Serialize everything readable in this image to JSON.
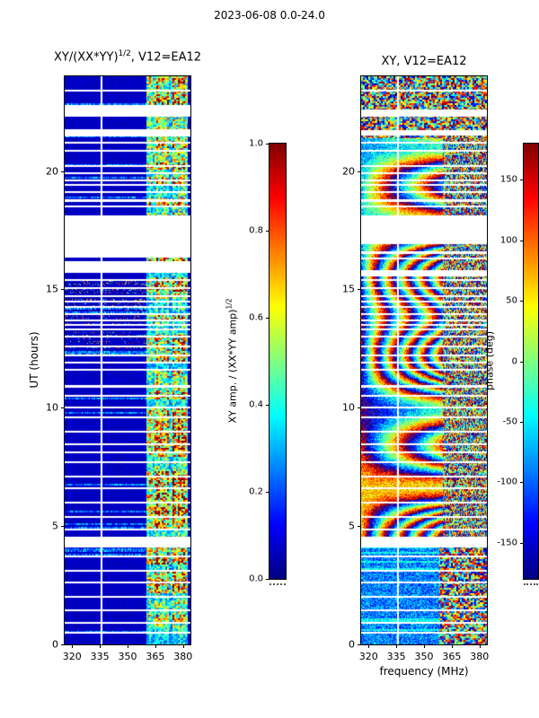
{
  "figure": {
    "title": "2023-06-08 0.0-24.0",
    "xlabel": "frequency (MHz)"
  },
  "left_plot": {
    "title_main": "XY/(XX*YY)",
    "title_sup": "1/2",
    "title_rest": ", V12=EA12",
    "ylabel": "UT (hours)",
    "x_tick_labels": [
      "320",
      "335",
      "350",
      "365",
      "380"
    ],
    "y_tick_labels": [
      "0",
      "5",
      "10",
      "15",
      "20"
    ]
  },
  "right_plot": {
    "title": "XY, V12=EA12",
    "x_tick_labels": [
      "320",
      "335",
      "350",
      "365",
      "380"
    ],
    "y_tick_labels": [
      "0",
      "5",
      "10",
      "15",
      "20"
    ]
  },
  "left_colorbar": {
    "label_main": "XY amp. / (XX*YY amp)",
    "label_sup": "1/2",
    "tick_labels": [
      "0.0",
      "0.2",
      "0.4",
      "0.6",
      "0.8",
      "1.0"
    ]
  },
  "right_colorbar": {
    "label": "phase (deg)",
    "tick_labels": [
      "-150",
      "-100",
      "-50",
      "0",
      "50",
      "100",
      "150"
    ]
  },
  "chart_data": [
    {
      "type": "heatmap",
      "title": "XY/(XX*YY)^(1/2), V12=EA12",
      "xlabel": "frequency (MHz)",
      "ylabel": "UT (hours)",
      "x_range": [
        316,
        384
      ],
      "y_range": [
        0,
        24
      ],
      "x_ticks": [
        320,
        335,
        350,
        365,
        380
      ],
      "y_ticks": [
        0,
        5,
        10,
        15,
        20
      ],
      "colormap": "jet",
      "value_range": [
        0,
        1
      ],
      "colorbar_label": "XY amp. / (XX*YY amp)^(1/2)",
      "colorbar_ticks": [
        0.0,
        0.2,
        0.4,
        0.6,
        0.8,
        1.0
      ],
      "description": "Normalized cross-amplitude vs UT and frequency: dark-blue low background (~0.05) with a strong speckled green/yellow/red band near 360-382 MHz, occasional light-blue elevated rows, scattered colored speckle rows near UT 12.3-15.3, white rows = data gaps, white column = flagged channel",
      "background_level": 0.05,
      "active_band_mhz": [
        360,
        382.5
      ],
      "flagged_channel_mhz": 336,
      "data_gaps_ut": [
        [
          4.08,
          4.55
        ],
        [
          15.7,
          16.2
        ],
        [
          16.35,
          18.12
        ],
        [
          21.45,
          21.75
        ],
        [
          22.3,
          22.78
        ]
      ],
      "thin_gap_rows_ut": [
        0.5,
        0.9,
        1.45,
        2.0,
        2.6,
        3.1,
        3.7,
        4.85,
        5.4,
        6.0,
        6.6,
        7.1,
        7.7,
        8.1,
        8.45,
        9.0,
        9.6,
        10.0,
        10.5,
        10.9,
        11.6,
        11.9,
        12.2,
        12.6,
        13.0,
        13.3,
        13.5,
        13.7,
        13.95,
        14.25,
        14.5,
        14.7,
        15.05,
        15.4,
        18.5,
        18.75,
        19.1,
        19.4,
        19.6,
        19.9,
        20.2,
        20.85,
        21.2,
        23.4
      ]
    },
    {
      "type": "heatmap",
      "title": "XY, V12=EA12",
      "xlabel": "frequency (MHz)",
      "ylabel": "UT (hours)",
      "x_range": [
        316,
        384
      ],
      "y_range": [
        0,
        24
      ],
      "x_ticks": [
        320,
        335,
        350,
        365,
        380
      ],
      "y_ticks": [
        0,
        5,
        10,
        15,
        20
      ],
      "colormap": "jet",
      "value_range": [
        -180,
        180
      ],
      "colorbar_label": "phase (deg)",
      "colorbar_ticks": [
        -150,
        -100,
        -50,
        0,
        50,
        100,
        150
      ],
      "description": "Cross-correlation phase vs UT and frequency: drifting vertical fringe stripes between ~UT 4.5 and 21.4, noisy blue/cyan phase below UT ~4.3 with chaotic speckle above 360 MHz, fully chaotic multicolor phase above UT ~21.4, white rows = data gaps, white column = flagged channel",
      "flagged_channel_mhz": 336,
      "fringe_region_ut": [
        4.5,
        21.4
      ],
      "noise_regions_ut": [
        [
          0,
          4.3
        ],
        [
          21.4,
          24
        ]
      ],
      "data_gaps_ut": [
        [
          4.08,
          4.55
        ],
        [
          15.55,
          15.8
        ],
        [
          16.9,
          18.12
        ],
        [
          21.5,
          21.72
        ],
        [
          22.3,
          22.6
        ]
      ],
      "thin_gap_rows_ut": [
        0.5,
        0.9,
        1.45,
        2.0,
        2.6,
        3.1,
        3.7,
        4.85,
        5.4,
        6.0,
        6.6,
        7.1,
        7.7,
        8.1,
        8.45,
        9.0,
        9.6,
        10.0,
        10.5,
        10.9,
        11.6,
        11.9,
        12.2,
        12.6,
        13.0,
        13.3,
        13.5,
        13.7,
        13.95,
        14.25,
        14.5,
        14.7,
        15.05,
        15.4,
        16.3,
        16.55,
        18.5,
        18.75,
        19.1,
        19.4,
        19.6,
        19.9,
        20.2,
        20.85,
        21.2,
        23.4
      ]
    }
  ]
}
